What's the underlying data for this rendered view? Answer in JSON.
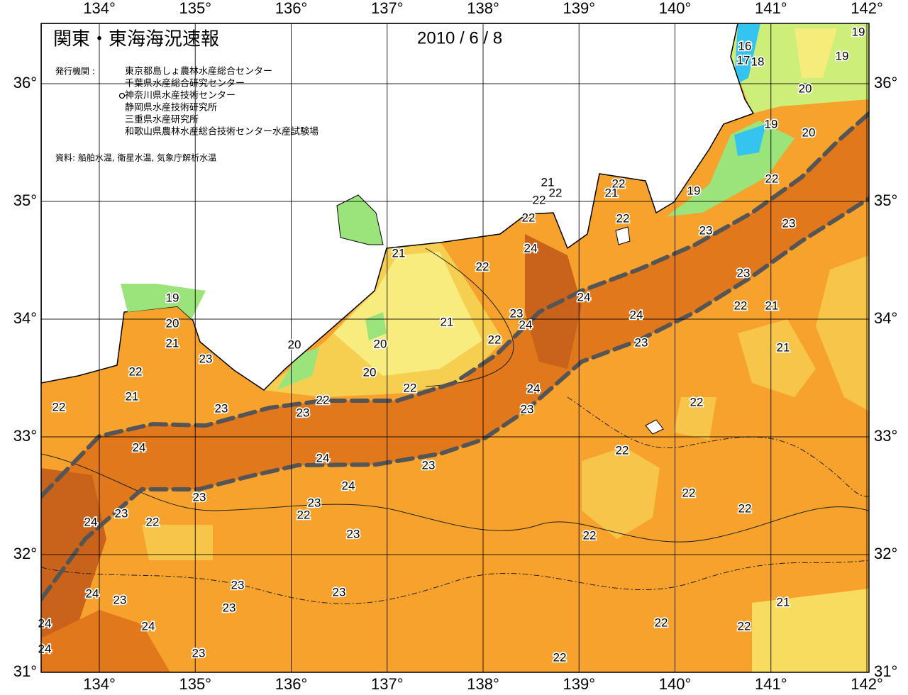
{
  "title": "関東・東海海況速報",
  "date": "2010 / 6 / 8",
  "issuer_label": "発行機関 :",
  "issuers": [
    "東京都島しょ農林水産総合センター",
    "千葉県水産総合研究センター",
    "神奈川県水産技術センター",
    "静岡県水産技術研究所",
    "三重県水産研究所",
    "和歌山県農林水産総合技術センター水産試験場"
  ],
  "source": "資料: 船舶水温, 衛星水温, 気象庁解析水温",
  "lon_ticks": [
    {
      "value": 134,
      "label": "134°"
    },
    {
      "value": 135,
      "label": "135°"
    },
    {
      "value": 136,
      "label": "136°"
    },
    {
      "value": 137,
      "label": "137°"
    },
    {
      "value": 138,
      "label": "138°"
    },
    {
      "value": 139,
      "label": "139°"
    },
    {
      "value": 140,
      "label": "140°"
    },
    {
      "value": 141,
      "label": "141°"
    },
    {
      "value": 142,
      "label": "142°"
    }
  ],
  "lat_ticks": [
    {
      "value": 31,
      "label": "31°"
    },
    {
      "value": 32,
      "label": "32°"
    },
    {
      "value": 33,
      "label": "33°"
    },
    {
      "value": 34,
      "label": "34°"
    },
    {
      "value": 35,
      "label": "35°"
    },
    {
      "value": 36,
      "label": "36°"
    }
  ],
  "contour_labels": [
    19,
    16,
    17,
    18,
    19,
    20,
    19,
    20,
    22,
    19,
    21,
    22,
    22,
    22,
    21,
    22,
    22,
    23,
    23,
    21,
    22,
    24,
    23,
    24,
    23,
    24,
    24,
    22,
    21,
    21,
    19,
    20,
    21,
    22,
    23,
    20,
    20,
    21,
    23,
    22,
    20,
    21,
    22,
    24,
    22,
    23,
    23,
    23,
    22,
    22,
    24,
    22,
    24,
    23,
    24,
    22,
    23,
    23,
    22,
    23,
    24,
    22,
    22,
    23,
    22,
    23,
    23,
    24,
    23,
    21,
    23,
    22,
    22,
    24,
    24,
    24,
    23,
    22
  ]
}
